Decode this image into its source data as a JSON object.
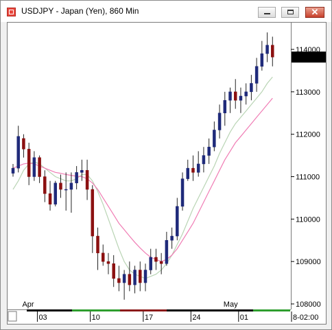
{
  "window": {
    "title": "USDJPY - Japan (Yen), 860 Min",
    "icon": "currency-chart-icon",
    "buttons": [
      "minimize-icon",
      "maximize-icon",
      "close-icon"
    ],
    "close_glyph": "✕"
  },
  "chart_data": {
    "type": "candlestick",
    "title": "USDJPY - Japan (Yen), 860 Min",
    "ylim": [
      108000,
      114600
    ],
    "y_ticks": [
      "108000",
      "109000",
      "110000",
      "111000",
      "112000",
      "113000",
      "114000"
    ],
    "last_price": "113819",
    "last_price_color": "#000000",
    "month_labels": [
      {
        "label": "Apr",
        "index": 2
      },
      {
        "label": "May",
        "index": 40
      }
    ],
    "x_ticks": [
      {
        "label": "03",
        "index": 2
      },
      {
        "label": "10",
        "index": 12
      },
      {
        "label": "17",
        "index": 22
      },
      {
        "label": "24",
        "index": 31
      },
      {
        "label": "01",
        "index": 40
      },
      {
        "label": "8-02:00",
        "index": 50
      }
    ],
    "colors": {
      "bull": "#1f2a7a",
      "bear": "#8b1010",
      "ma_fast": "#b9d4b4",
      "ma_slow": "#f07cb4",
      "session_bar": [
        "#2e9e2e",
        "#8b1a1a",
        "#000000",
        "#2e9e2e"
      ]
    },
    "series": [
      {
        "name": "USDJPY",
        "ohlc": [
          [
            111080,
            111300,
            111000,
            111200
          ],
          [
            111200,
            112200,
            111100,
            111950
          ],
          [
            111900,
            112000,
            111450,
            111650
          ],
          [
            111650,
            111800,
            110800,
            111000
          ],
          [
            111000,
            111600,
            110900,
            111450
          ],
          [
            111450,
            111500,
            110850,
            111000
          ],
          [
            111000,
            111150,
            110400,
            110600
          ],
          [
            110600,
            110900,
            110200,
            110350
          ],
          [
            110350,
            110900,
            110300,
            110850
          ],
          [
            110850,
            111050,
            110500,
            110700
          ],
          [
            110700,
            111100,
            110200,
            110700
          ],
          [
            110700,
            111100,
            110150,
            110850
          ],
          [
            110850,
            111250,
            110700,
            111100
          ],
          [
            111100,
            111400,
            110900,
            111150
          ],
          [
            111150,
            111400,
            110450,
            110700
          ],
          [
            110700,
            110800,
            109200,
            109600
          ],
          [
            109600,
            109800,
            108800,
            109200
          ],
          [
            109200,
            109400,
            108900,
            109000
          ],
          [
            109000,
            109200,
            108700,
            108950
          ],
          [
            108950,
            109150,
            108400,
            108600
          ],
          [
            108600,
            108900,
            108300,
            108500
          ],
          [
            108500,
            108800,
            108100,
            108700
          ],
          [
            108700,
            109000,
            108300,
            108450
          ],
          [
            108450,
            108900,
            108250,
            108800
          ],
          [
            108800,
            109000,
            108300,
            108500
          ],
          [
            108500,
            108950,
            108300,
            108800
          ],
          [
            108800,
            109300,
            108700,
            109100
          ],
          [
            109100,
            109300,
            108800,
            109000
          ],
          [
            109000,
            109200,
            108700,
            108950
          ],
          [
            108950,
            109700,
            108900,
            109500
          ],
          [
            109500,
            109800,
            109300,
            109600
          ],
          [
            109600,
            110500,
            109500,
            110300
          ],
          [
            110300,
            111100,
            110200,
            110950
          ],
          [
            110950,
            111400,
            110900,
            111200
          ],
          [
            111200,
            111500,
            110900,
            111100
          ],
          [
            111100,
            111600,
            111000,
            111300
          ],
          [
            111300,
            111700,
            111100,
            111500
          ],
          [
            111500,
            111900,
            111300,
            111700
          ],
          [
            111700,
            112300,
            111600,
            112100
          ],
          [
            112100,
            112700,
            111900,
            112500
          ],
          [
            112500,
            113000,
            112200,
            112800
          ],
          [
            112800,
            113100,
            112500,
            113000
          ],
          [
            113000,
            113300,
            112600,
            112800
          ],
          [
            112800,
            113100,
            112500,
            112900
          ],
          [
            112900,
            113200,
            112700,
            113000
          ],
          [
            113000,
            113400,
            112800,
            113200
          ],
          [
            113200,
            113800,
            113000,
            113600
          ],
          [
            113600,
            114200,
            113500,
            113900
          ],
          [
            113900,
            114400,
            113700,
            114100
          ],
          [
            114100,
            114300,
            113600,
            113819
          ]
        ]
      },
      {
        "name": "MA fast",
        "values": [
          110700,
          110900,
          111150,
          111300,
          111350,
          111300,
          111200,
          111100,
          111000,
          110950,
          110900,
          110900,
          110950,
          111050,
          111050,
          110900,
          110650,
          110350,
          110000,
          109650,
          109300,
          109000,
          108800,
          108700,
          108650,
          108600,
          108650,
          108700,
          108800,
          108950,
          109150,
          109400,
          109650,
          109950,
          110250,
          110500,
          110750,
          111000,
          111250,
          111550,
          111800,
          112050,
          112250,
          112400,
          112550,
          112700,
          112850,
          113000,
          113200,
          113350
        ]
      },
      {
        "name": "MA slow",
        "values": [
          111200,
          111250,
          111300,
          111320,
          111300,
          111250,
          111200,
          111150,
          111100,
          111080,
          111050,
          111030,
          111010,
          111000,
          110950,
          110850,
          110700,
          110500,
          110300,
          110100,
          109900,
          109750,
          109600,
          109450,
          109320,
          109200,
          109100,
          109050,
          109000,
          109050,
          109150,
          109300,
          109500,
          109700,
          109900,
          110150,
          110400,
          110650,
          110900,
          111150,
          111400,
          111600,
          111800,
          111950,
          112100,
          112250,
          112400,
          112550,
          112700,
          112850
        ]
      }
    ]
  }
}
